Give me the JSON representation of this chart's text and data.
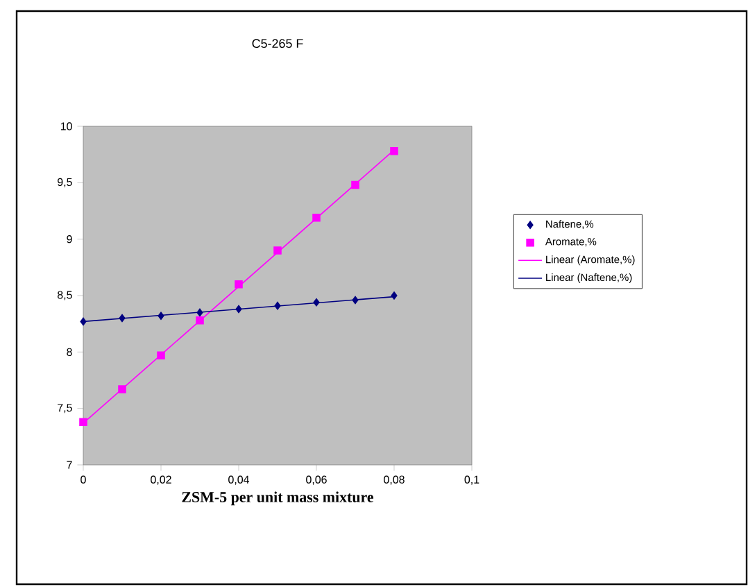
{
  "chart_data": {
    "type": "scatter",
    "title": "C5-265 F",
    "xlabel": "ZSM-5 per unit mass mixture",
    "xlim": [
      0,
      0.1
    ],
    "ylim": [
      7,
      10
    ],
    "xticks": [
      0,
      {
        "value": 0.02,
        "label": "0,02"
      },
      {
        "value": 0.04,
        "label": "0,04"
      },
      {
        "value": 0.06,
        "label": "0,06"
      },
      {
        "value": 0.08,
        "label": "0,08"
      },
      {
        "value": 0.1,
        "label": "0,1"
      }
    ],
    "yticks": [
      7,
      {
        "value": 7.5,
        "label": "7,5"
      },
      8,
      {
        "value": 8.5,
        "label": "8,5"
      },
      9,
      {
        "value": 9.5,
        "label": "9,5"
      },
      10
    ],
    "legend": "right",
    "grid": false,
    "series": [
      {
        "name": "Naftene,%",
        "marker": "diamond",
        "color": "#000080",
        "x": [
          0,
          0.01,
          0.02,
          0.03,
          0.04,
          0.05,
          0.06,
          0.07,
          0.08
        ],
        "values": [
          8.27,
          8.3,
          8.32,
          8.35,
          8.38,
          8.41,
          8.44,
          8.46,
          8.5
        ]
      },
      {
        "name": "Aromate,%",
        "marker": "square",
        "color": "#ff00ff",
        "x": [
          0,
          0.01,
          0.02,
          0.03,
          0.04,
          0.05,
          0.06,
          0.07,
          0.08
        ],
        "values": [
          7.38,
          7.67,
          7.97,
          8.28,
          8.6,
          8.9,
          9.19,
          9.48,
          9.78
        ]
      },
      {
        "name": "Linear (Aromate,%)",
        "type": "line",
        "marker": "none",
        "color": "#ff00ff",
        "x": [
          0,
          0.08
        ],
        "values": [
          7.37,
          9.79
        ]
      },
      {
        "name": "Linear (Naftene,%)",
        "type": "line",
        "marker": "none",
        "color": "#000080",
        "x": [
          0,
          0.08
        ],
        "values": [
          8.27,
          8.49
        ]
      }
    ]
  }
}
